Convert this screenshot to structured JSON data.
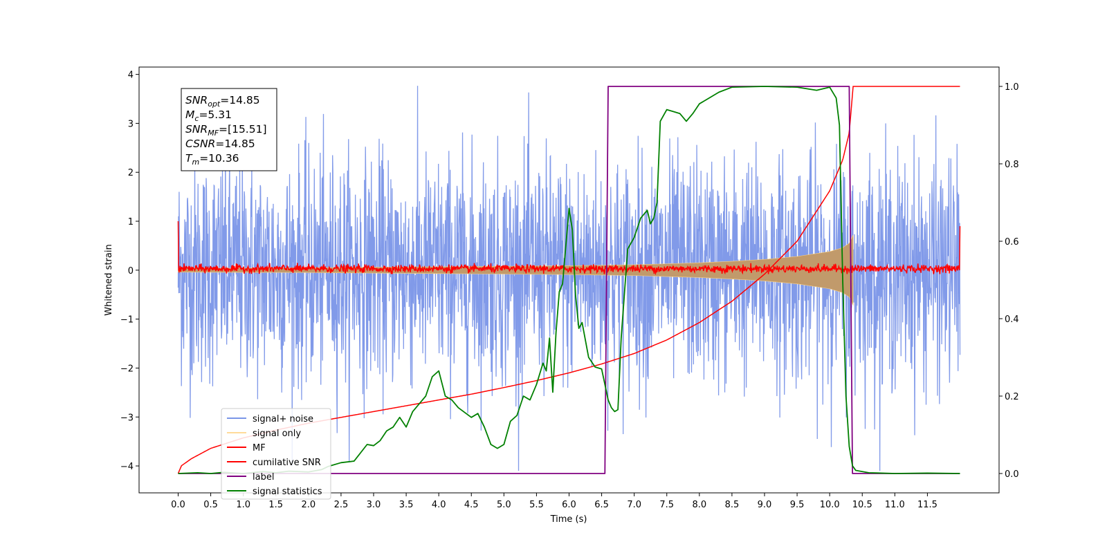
{
  "chart_data": {
    "type": "line",
    "xlabel": "Time (s)",
    "ylabel": "Whitened strain",
    "xlim": [
      -0.6,
      12.6
    ],
    "ylim": [
      -4.55,
      4.15
    ],
    "ylim_right": [
      -0.05,
      1.05
    ],
    "x_ticks": [
      0.0,
      0.5,
      1.0,
      1.5,
      2.0,
      2.5,
      3.0,
      3.5,
      4.0,
      4.5,
      5.0,
      5.5,
      6.0,
      6.5,
      7.0,
      7.5,
      8.0,
      8.5,
      9.0,
      9.5,
      10.0,
      10.5,
      11.0,
      11.5
    ],
    "x_tick_labels": [
      "0.0",
      "0.5",
      "1.0",
      "1.5",
      "2.0",
      "2.5",
      "3.0",
      "3.5",
      "4.0",
      "4.5",
      "5.0",
      "5.5",
      "6.0",
      "6.5",
      "7.0",
      "7.5",
      "8.0",
      "8.5",
      "9.0",
      "9.5",
      "10.0",
      "10.5",
      "11.0",
      "11.5"
    ],
    "y_ticks": [
      4,
      3,
      2,
      1,
      0,
      -1,
      -2,
      -3,
      -4
    ],
    "y_tick_labels": [
      "4",
      "3",
      "2",
      "1",
      "0",
      "−1",
      "−2",
      "−3",
      "−4"
    ],
    "y_right_ticks": [
      1.0,
      0.8,
      0.6,
      0.4,
      0.2,
      0.0
    ],
    "y_right_tick_labels": [
      "1.0",
      "0.8",
      "0.6",
      "0.4",
      "0.2",
      "0.0"
    ],
    "grid": false,
    "legend_position": "lower-left",
    "stats_box": {
      "position": "upper-left",
      "lines": [
        {
          "base": "SNR",
          "sub": "opt",
          "value": "=14.85"
        },
        {
          "base": "M",
          "sub": "c",
          "value": "=5.31"
        },
        {
          "base": "SNR",
          "sub": "MF",
          "value": "=[15.51]"
        },
        {
          "base": "CSNR",
          "sub": "",
          "value": "=14.85"
        },
        {
          "base": "T",
          "sub": "m",
          "value": "=10.36"
        }
      ]
    },
    "series": [
      {
        "name": "signal+ noise",
        "color": "#7a95e8",
        "axis": "left",
        "style": "noise",
        "x_range": [
          0.0,
          12.0
        ],
        "amplitude_range": [
          -4.1,
          3.8
        ]
      },
      {
        "name": "signal only",
        "color": "#ffd27f",
        "fill_color": "#c19a6b",
        "axis": "left",
        "style": "envelope",
        "x": [
          0.0,
          2.0,
          4.0,
          5.0,
          6.0,
          6.5,
          7.0,
          7.5,
          8.0,
          8.5,
          9.0,
          9.5,
          10.0,
          10.2,
          10.3,
          10.36
        ],
        "values": [
          0.04,
          0.05,
          0.07,
          0.08,
          0.09,
          0.1,
          0.11,
          0.13,
          0.15,
          0.18,
          0.22,
          0.28,
          0.38,
          0.46,
          0.55,
          0.72
        ]
      },
      {
        "name": "MF",
        "color": "#ff0000",
        "axis": "left",
        "style": "mf",
        "x_range": [
          0.0,
          12.0
        ],
        "endpoints": [
          1.0,
          0.9
        ],
        "noise_band": [
          -0.08,
          0.16
        ]
      },
      {
        "name": "cumilative SNR",
        "color": "#ff0000",
        "axis": "right",
        "x": [
          0.0,
          0.05,
          0.2,
          0.5,
          1.0,
          1.5,
          2.0,
          2.5,
          3.0,
          3.5,
          4.0,
          4.5,
          5.0,
          5.5,
          6.0,
          6.5,
          7.0,
          7.5,
          8.0,
          8.5,
          9.0,
          9.5,
          10.0,
          10.2,
          10.3,
          10.36,
          12.0
        ],
        "values": [
          0.0,
          0.02,
          0.038,
          0.065,
          0.092,
          0.112,
          0.13,
          0.145,
          0.16,
          0.175,
          0.19,
          0.205,
          0.222,
          0.24,
          0.26,
          0.283,
          0.31,
          0.345,
          0.39,
          0.445,
          0.515,
          0.6,
          0.73,
          0.81,
          0.88,
          1.0,
          1.0
        ]
      },
      {
        "name": "label",
        "color": "#800080",
        "axis": "right",
        "x": [
          0.0,
          6.55,
          6.6,
          10.3,
          10.35,
          12.0
        ],
        "values": [
          0.0,
          0.0,
          1.0,
          1.0,
          0.0,
          0.0
        ]
      },
      {
        "name": "signal statistics",
        "color": "#008000",
        "axis": "right",
        "x": [
          0.0,
          0.3,
          0.5,
          0.7,
          1.0,
          1.3,
          1.5,
          1.7,
          2.0,
          2.2,
          2.3,
          2.5,
          2.7,
          2.9,
          3.0,
          3.1,
          3.2,
          3.3,
          3.4,
          3.5,
          3.6,
          3.7,
          3.8,
          3.9,
          4.0,
          4.1,
          4.2,
          4.3,
          4.5,
          4.6,
          4.7,
          4.8,
          4.9,
          5.0,
          5.1,
          5.2,
          5.3,
          5.4,
          5.5,
          5.6,
          5.65,
          5.7,
          5.75,
          5.8,
          5.85,
          5.9,
          6.0,
          6.05,
          6.1,
          6.15,
          6.2,
          6.3,
          6.4,
          6.5,
          6.6,
          6.65,
          6.7,
          6.75,
          6.8,
          6.9,
          7.0,
          7.1,
          7.2,
          7.25,
          7.3,
          7.35,
          7.4,
          7.5,
          7.6,
          7.7,
          7.8,
          7.9,
          8.0,
          8.1,
          8.2,
          8.3,
          8.5,
          9.0,
          9.5,
          9.8,
          10.0,
          10.1,
          10.15,
          10.2,
          10.25,
          10.3,
          10.35,
          10.4,
          10.6,
          11.0,
          11.5,
          12.0
        ],
        "values": [
          0.0,
          0.002,
          0.0,
          0.003,
          0.0,
          0.005,
          0.002,
          0.006,
          0.004,
          0.01,
          0.018,
          0.028,
          0.032,
          0.075,
          0.072,
          0.085,
          0.11,
          0.12,
          0.145,
          0.12,
          0.16,
          0.18,
          0.2,
          0.25,
          0.265,
          0.2,
          0.19,
          0.17,
          0.145,
          0.155,
          0.12,
          0.075,
          0.065,
          0.075,
          0.135,
          0.15,
          0.2,
          0.19,
          0.23,
          0.285,
          0.265,
          0.35,
          0.21,
          0.365,
          0.47,
          0.49,
          0.685,
          0.63,
          0.46,
          0.375,
          0.39,
          0.3,
          0.275,
          0.27,
          0.19,
          0.17,
          0.16,
          0.165,
          0.35,
          0.58,
          0.61,
          0.66,
          0.68,
          0.645,
          0.66,
          0.7,
          0.91,
          0.94,
          0.935,
          0.93,
          0.91,
          0.93,
          0.955,
          0.965,
          0.975,
          0.985,
          0.998,
          1.0,
          0.998,
          0.99,
          0.998,
          0.97,
          0.9,
          0.5,
          0.2,
          0.07,
          0.02,
          0.008,
          0.002,
          0.0,
          0.001,
          0.0
        ]
      }
    ]
  }
}
